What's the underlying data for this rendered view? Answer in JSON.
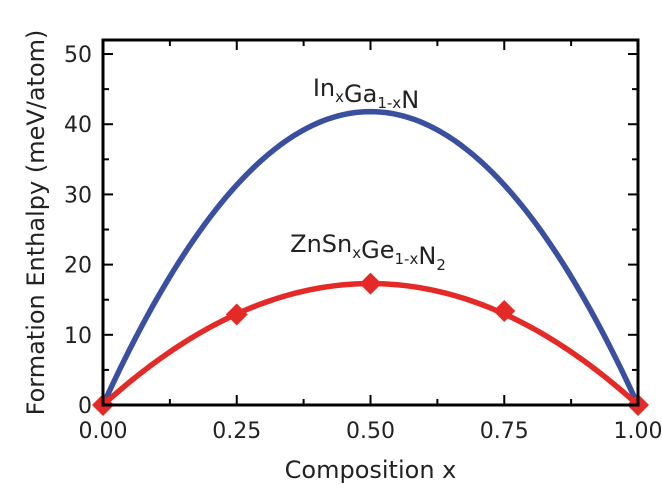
{
  "chart_data": {
    "type": "line",
    "xlabel": "Composition x",
    "ylabel": "Formation Enthalpy (meV/atom)",
    "xlim": [
      0,
      1
    ],
    "ylim": [
      0,
      52
    ],
    "x_ticks": [
      0,
      0.25,
      0.5,
      0.75,
      1.0
    ],
    "x_tick_labels": [
      "0.00",
      "0.25",
      "0.50",
      "0.75",
      "1.00"
    ],
    "y_ticks": [
      0,
      10,
      20,
      30,
      40,
      50
    ],
    "y_tick_labels": [
      "0",
      "10",
      "20",
      "30",
      "40",
      "50"
    ],
    "grid": false,
    "series": [
      {
        "name_parts": [
          [
            "In",
            ""
          ],
          [
            "x",
            "sub"
          ],
          [
            "Ga",
            ""
          ],
          [
            "1-x",
            "sub"
          ],
          [
            "N",
            ""
          ]
        ],
        "color": "#3a4fa0",
        "model": "parabola",
        "peak_y": 41.8,
        "x": [
          0,
          1
        ],
        "y": [
          0,
          0
        ]
      },
      {
        "name_parts": [
          [
            "ZnSn",
            ""
          ],
          [
            "x",
            "sub"
          ],
          [
            "Ge",
            ""
          ],
          [
            "1-x",
            "sub"
          ],
          [
            "N",
            ""
          ],
          [
            "2",
            "sub"
          ]
        ],
        "color": "#e42a27",
        "model": "parabola",
        "peak_y": 17.3,
        "markers": "diamond",
        "x": [
          0,
          0.25,
          0.5,
          0.75,
          1.0
        ],
        "y": [
          0,
          12.9,
          17.3,
          13.4,
          0
        ]
      }
    ]
  }
}
